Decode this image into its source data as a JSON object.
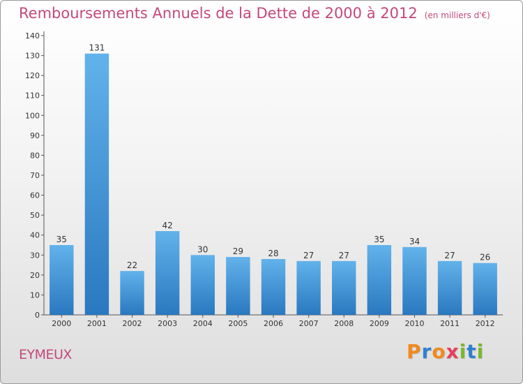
{
  "header": {
    "title": "Remboursements Annuels de la Dette de 2000 à 2012",
    "unit": "(en milliers d'€)"
  },
  "footer": {
    "place": "EYMEUX",
    "brand": [
      "P",
      "r",
      "o",
      "x",
      "i",
      "t",
      "i"
    ]
  },
  "colors": {
    "title": "#c4487a",
    "bar_light": "#62b2eb",
    "bar_dark": "#2a78bf",
    "brand": [
      "#f08a1e",
      "#2f7fd1",
      "#f08a1e",
      "#e6405a",
      "#7ab82b",
      "#2f7fd1",
      "#7ab82b"
    ]
  },
  "chart_data": {
    "type": "bar",
    "title": "Remboursements Annuels de la Dette de 2000 à 2012",
    "categories": [
      "2000",
      "2001",
      "2002",
      "2003",
      "2004",
      "2005",
      "2006",
      "2007",
      "2008",
      "2009",
      "2010",
      "2011",
      "2012"
    ],
    "values": [
      35,
      131,
      22,
      42,
      30,
      29,
      28,
      27,
      27,
      35,
      34,
      27,
      26
    ],
    "xlabel": "",
    "ylabel": "",
    "ylim": [
      0,
      140
    ],
    "yticks": [
      0,
      10,
      20,
      30,
      40,
      50,
      60,
      70,
      80,
      90,
      100,
      110,
      120,
      130,
      140
    ],
    "grid": false,
    "legend": "none"
  }
}
